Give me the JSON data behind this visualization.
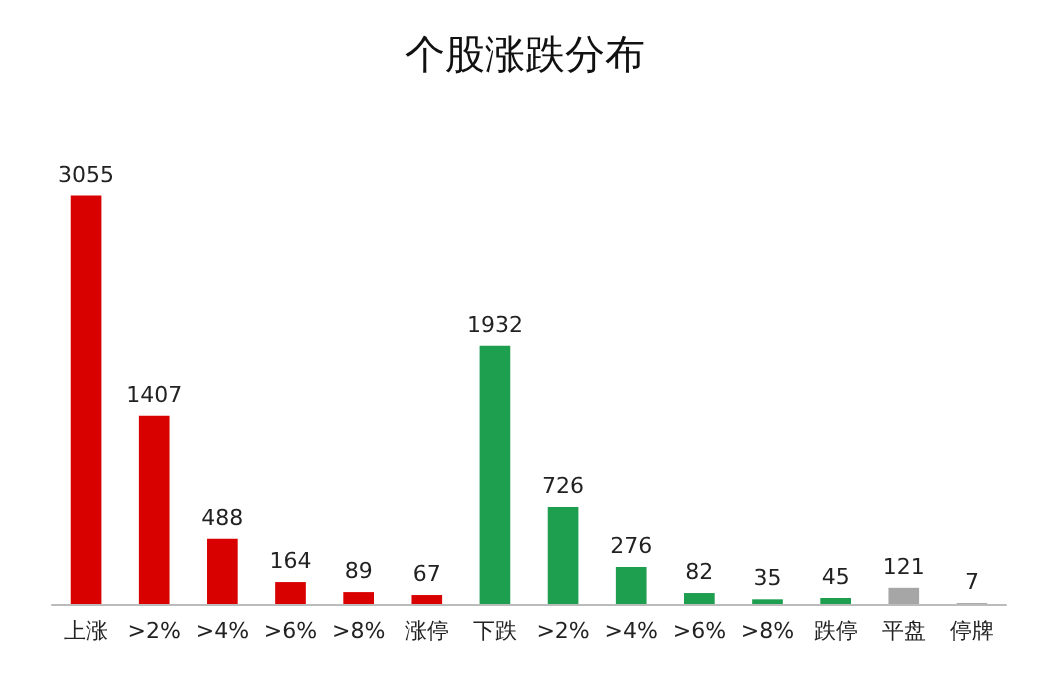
{
  "chart_data": {
    "type": "bar",
    "title": "个股涨跌分布",
    "categories": [
      "上涨",
      ">2%",
      ">4%",
      ">6%",
      ">8%",
      "涨停",
      "下跌",
      ">2%",
      ">4%",
      ">6%",
      ">8%",
      "跌停",
      "平盘",
      "停牌"
    ],
    "values": [
      3055,
      1407,
      488,
      164,
      89,
      67,
      1932,
      726,
      276,
      82,
      35,
      45,
      121,
      7
    ],
    "colors": [
      "#d90000",
      "#d90000",
      "#d90000",
      "#d90000",
      "#d90000",
      "#d90000",
      "#1e9e4f",
      "#1e9e4f",
      "#1e9e4f",
      "#1e9e4f",
      "#1e9e4f",
      "#1e9e4f",
      "#a6a6a6",
      "#a6a6a6"
    ],
    "data_labels": true
  }
}
